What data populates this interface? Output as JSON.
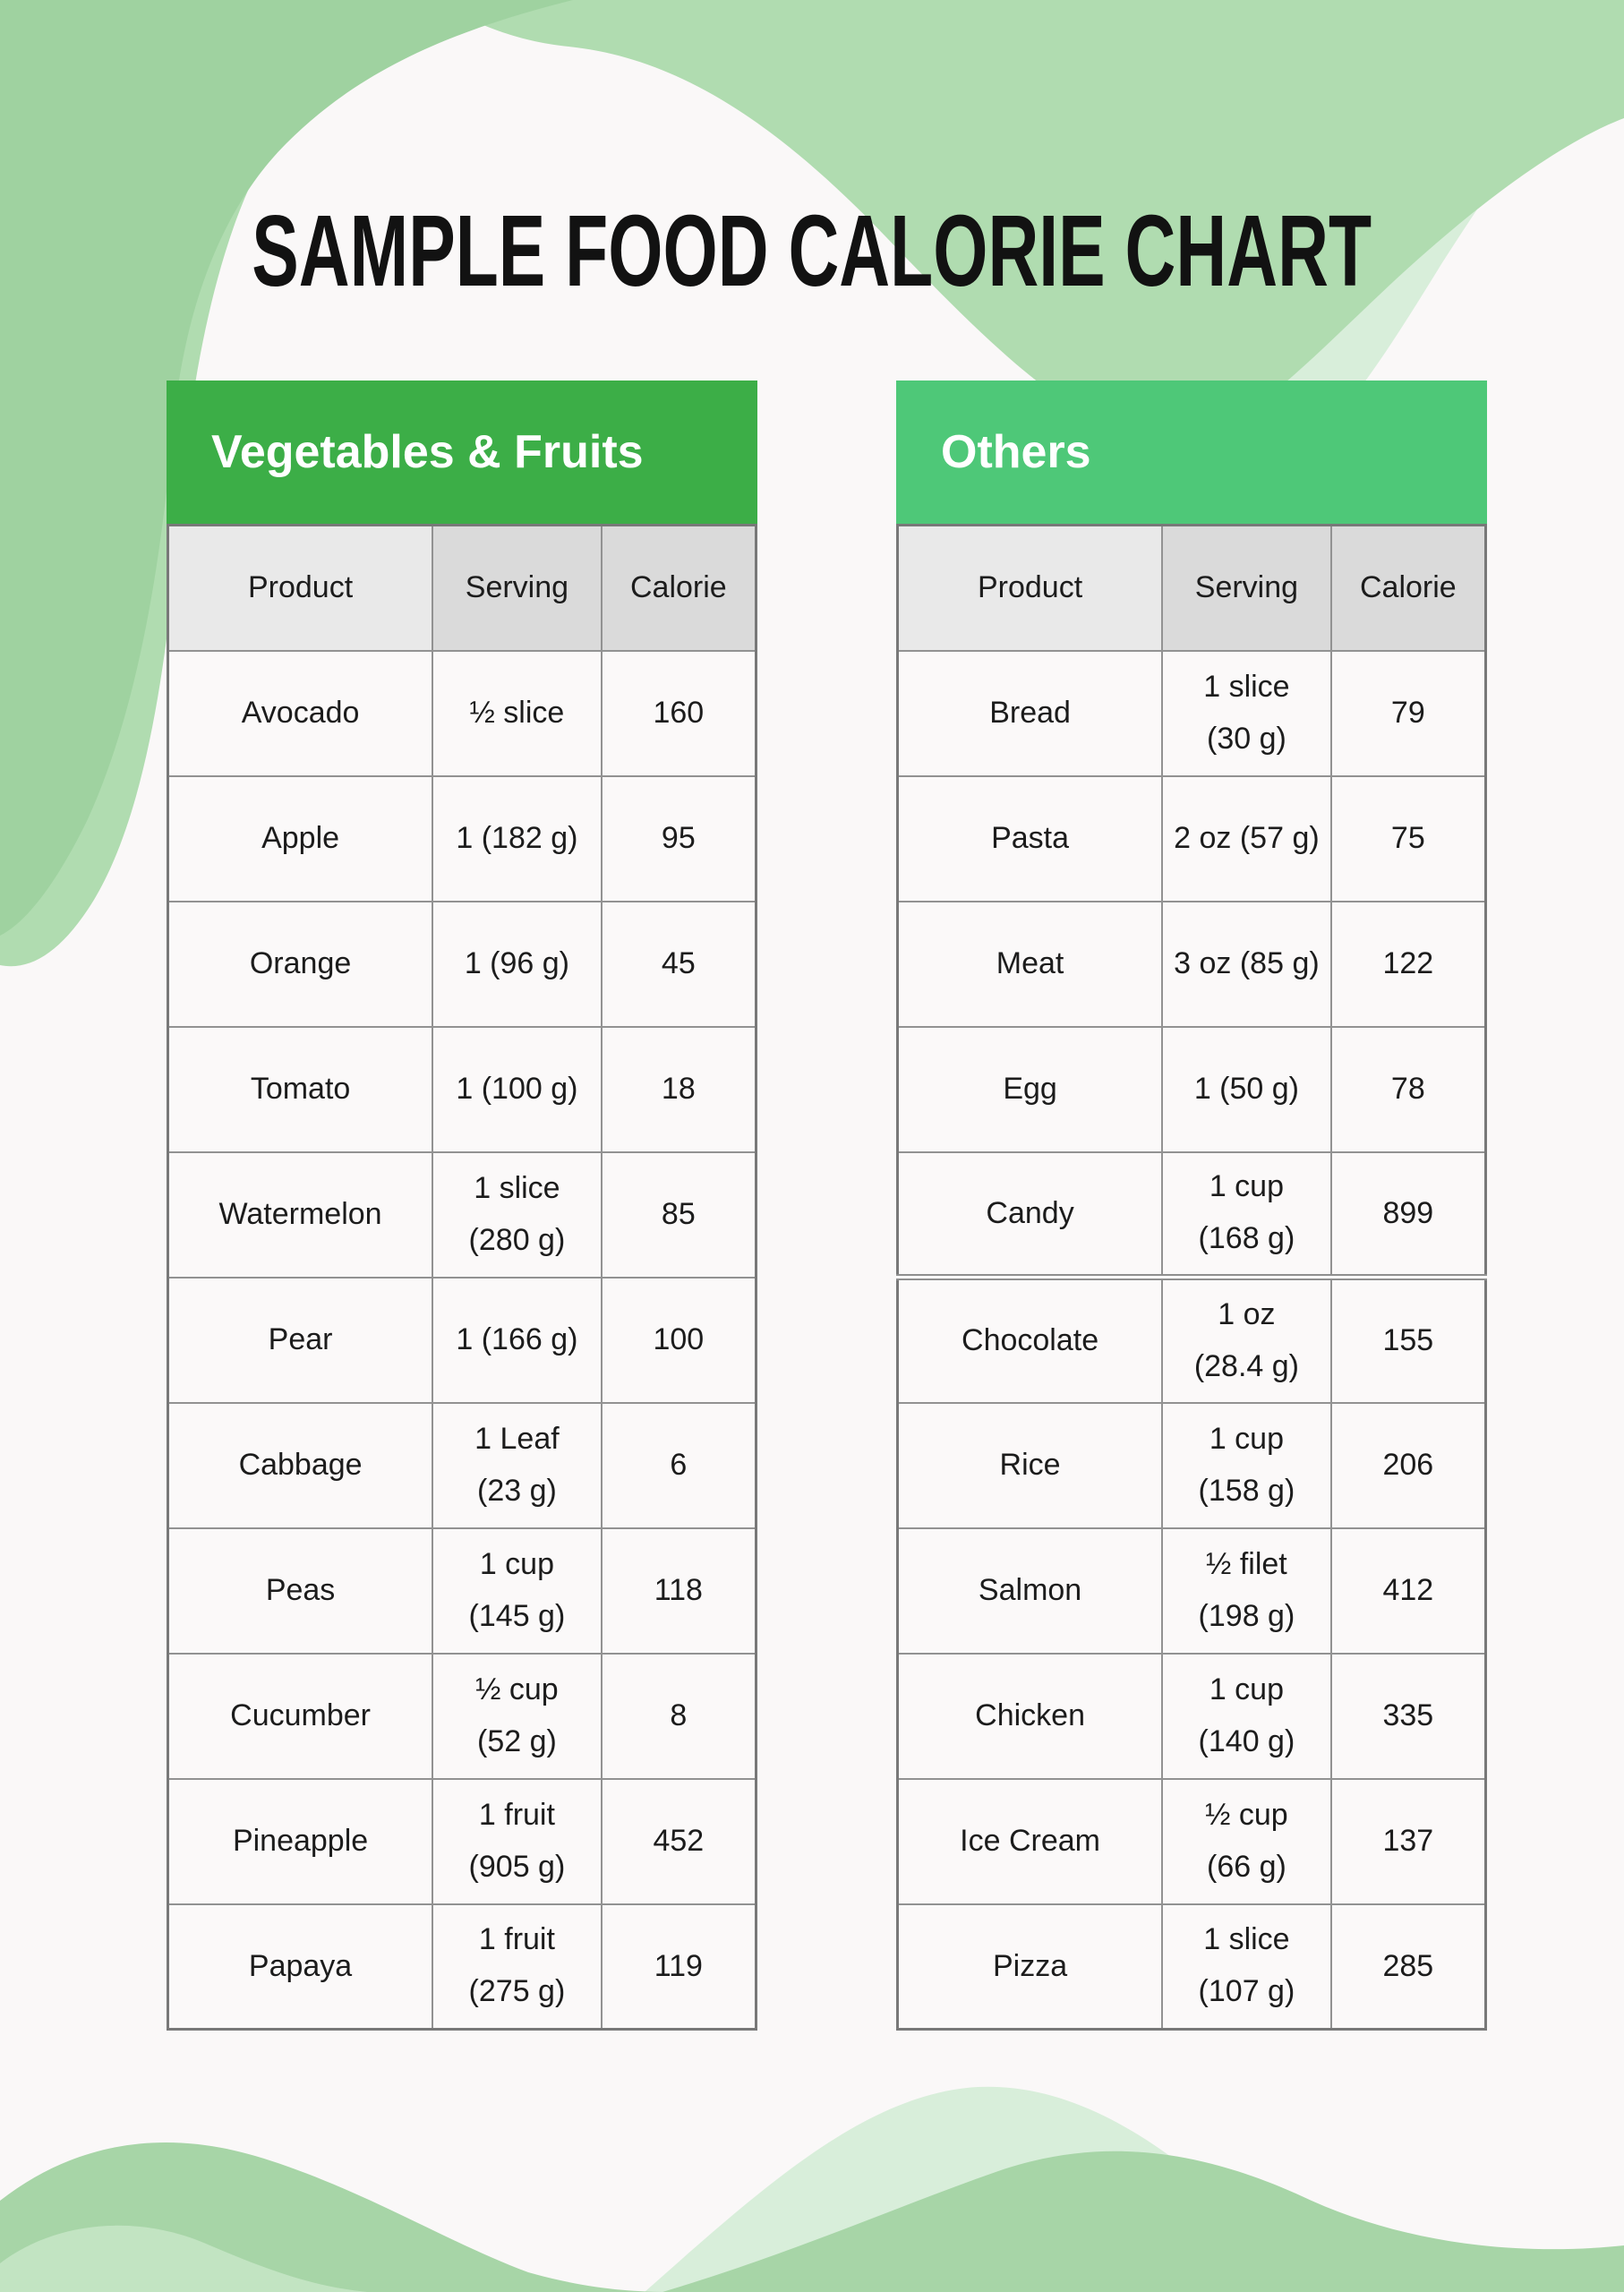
{
  "page": {
    "title": "SAMPLE FOOD CALORIE CHART",
    "background_color": "#faf8f8"
  },
  "colors": {
    "wave_green_main": "#b0dcb0",
    "wave_green_dark": "#9fd2a0",
    "wave_green_pale": "#d8eeda",
    "wave_green_pale_left": "#c2e4c2",
    "table_border": "#929292",
    "header_row_bg": "#dadada",
    "header_row_bg_product": "#e9e9e9",
    "row_bg": "#fbf9f9",
    "left_banner_bg": "#3cae47",
    "right_banner_bg": "#4ec878",
    "banner_text": "#ffffff"
  },
  "columns": [
    "Product",
    "Serving",
    "Calorie"
  ],
  "tables": [
    {
      "id": "vegetables-fruits",
      "title": "Vegetables & Fruits",
      "header_bg": "#3cae47",
      "rows": [
        {
          "product": "Avocado",
          "serving": "½ slice",
          "calorie": "160"
        },
        {
          "product": "Apple",
          "serving": "1 (182 g)",
          "calorie": "95"
        },
        {
          "product": "Orange",
          "serving": "1 (96 g)",
          "calorie": "45"
        },
        {
          "product": "Tomato",
          "serving": "1 (100 g)",
          "calorie": "18"
        },
        {
          "product": "Watermelon",
          "serving": "1 slice\n(280 g)",
          "calorie": "85"
        },
        {
          "product": "Pear",
          "serving": "1 (166 g)",
          "calorie": "100"
        },
        {
          "product": "Cabbage",
          "serving": "1 Leaf\n(23 g)",
          "calorie": "6"
        },
        {
          "product": "Peas",
          "serving": "1 cup\n(145 g)",
          "calorie": "118"
        },
        {
          "product": "Cucumber",
          "serving": "½ cup\n(52 g)",
          "calorie": "8"
        },
        {
          "product": "Pineapple",
          "serving": "1 fruit\n(905 g)",
          "calorie": "452"
        },
        {
          "product": "Papaya",
          "serving": "1 fruit\n(275 g)",
          "calorie": "119"
        }
      ]
    },
    {
      "id": "others",
      "title": "Others",
      "header_bg": "#4ec878",
      "split_before_row": 5,
      "rows": [
        {
          "product": "Bread",
          "serving": "1 slice\n(30 g)",
          "calorie": "79"
        },
        {
          "product": "Pasta",
          "serving": "2 oz (57 g)",
          "calorie": "75"
        },
        {
          "product": "Meat",
          "serving": "3 oz (85 g)",
          "calorie": "122"
        },
        {
          "product": "Egg",
          "serving": "1 (50 g)",
          "calorie": "78"
        },
        {
          "product": "Candy",
          "serving": "1 cup\n(168 g)",
          "calorie": "899"
        },
        {
          "product": "Chocolate",
          "serving": "1 oz\n(28.4 g)",
          "calorie": "155"
        },
        {
          "product": "Rice",
          "serving": "1 cup\n(158 g)",
          "calorie": "206"
        },
        {
          "product": "Salmon",
          "serving": "½ filet\n(198 g)",
          "calorie": "412"
        },
        {
          "product": "Chicken",
          "serving": "1 cup\n(140 g)",
          "calorie": "335"
        },
        {
          "product": "Ice Cream",
          "serving": "½ cup\n(66 g)",
          "calorie": "137"
        },
        {
          "product": "Pizza",
          "serving": "1 slice\n(107 g)",
          "calorie": "285"
        }
      ]
    }
  ]
}
